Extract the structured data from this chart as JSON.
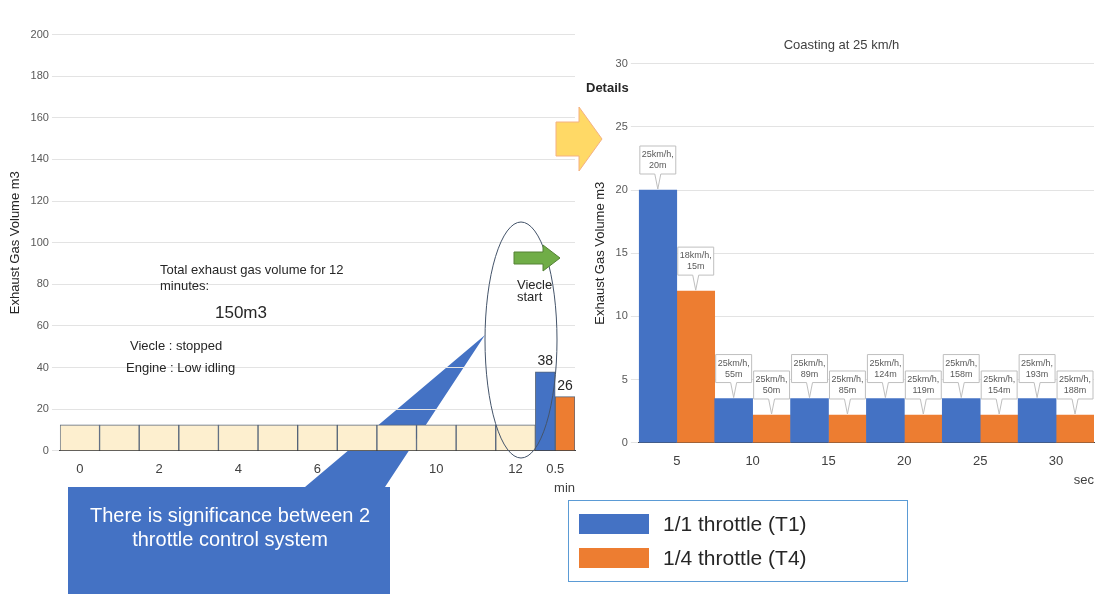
{
  "chart_data": [
    {
      "type": "bar",
      "categories": [
        "0",
        null,
        "2",
        null,
        "4",
        null,
        "6",
        null,
        null,
        "10",
        null,
        "12",
        "0.5"
      ],
      "xlabel": "min",
      "ylabel": "Exhaust Gas Volume m3",
      "ylim": [
        0,
        200
      ],
      "yticks": [
        0,
        20,
        40,
        60,
        80,
        100,
        120,
        140,
        160,
        180,
        200
      ],
      "grid": "y",
      "legend": false,
      "series": [
        {
          "color": "#fdefcf",
          "values": [
            12.5,
            12.5,
            12.5,
            12.5,
            12.5,
            12.5,
            12.5,
            12.5,
            12.5,
            12.5,
            12.5,
            12.5,
            null
          ]
        },
        {
          "color": "#4472c4",
          "values": [
            null,
            null,
            null,
            null,
            null,
            null,
            null,
            null,
            null,
            null,
            null,
            null,
            38
          ],
          "value_labels": [
            null,
            null,
            null,
            null,
            null,
            null,
            null,
            null,
            null,
            null,
            null,
            null,
            "38"
          ]
        },
        {
          "color": "#ed7d31",
          "values": [
            null,
            null,
            null,
            null,
            null,
            null,
            null,
            null,
            null,
            null,
            null,
            null,
            26
          ],
          "value_labels": [
            null,
            null,
            null,
            null,
            null,
            null,
            null,
            null,
            null,
            null,
            null,
            null,
            "26"
          ]
        }
      ],
      "annotations": [
        "Total exhaust gas volume for 12 minutes:",
        "150m3",
        "Viecle : stopped",
        "Engine : Low idling",
        "Viecle start",
        "There is significance between 2 throttle control system"
      ]
    },
    {
      "type": "bar",
      "title": "Coasting at 25 km/h",
      "categories": [
        "5",
        "10",
        "15",
        "20",
        "25",
        "30"
      ],
      "xlabel": "sec",
      "ylabel": "Exhaust Gas Volume m3",
      "ylim": [
        0,
        30
      ],
      "yticks": [
        0,
        5,
        10,
        15,
        20,
        25,
        30
      ],
      "grid": "y",
      "legend": "bottom",
      "series": [
        {
          "name": "1/1 throttle (T1)",
          "color": "#4472c4",
          "values": [
            20,
            3.5,
            3.5,
            3.5,
            3.5,
            3.5
          ]
        },
        {
          "name": "1/4 throttle (T4)",
          "color": "#ed7d31",
          "values": [
            12,
            2.2,
            2.2,
            2.2,
            2.2,
            2.2
          ]
        }
      ],
      "annotations": [
        "Details",
        {
          "text": "25km/h, 20m",
          "x": "5",
          "y": 20
        },
        {
          "text": "25km/h, 55m",
          "x": "10",
          "y": 3.5
        },
        {
          "text": "25km/h, 89m",
          "x": "15",
          "y": 3.5
        },
        {
          "text": "25km/h, 124m",
          "x": "20",
          "y": 3.5
        },
        {
          "text": "25km/h, 158m",
          "x": "25",
          "y": 3.5
        },
        {
          "text": "25km/h, 193m",
          "x": "30",
          "y": 3.5
        },
        {
          "text": "18km/h, 15m",
          "x": "5",
          "y": 12
        },
        {
          "text": "25km/h, 50m",
          "x": "10",
          "y": 2.2
        },
        {
          "text": "25km/h, 85m",
          "x": "15",
          "y": 2.2
        },
        {
          "text": "25km/h, 119m",
          "x": "20",
          "y": 2.2
        },
        {
          "text": "25km/h, 154m",
          "x": "25",
          "y": 2.2
        },
        {
          "text": "25km/h, 188m",
          "x": "30",
          "y": 2.2
        }
      ]
    }
  ]
}
